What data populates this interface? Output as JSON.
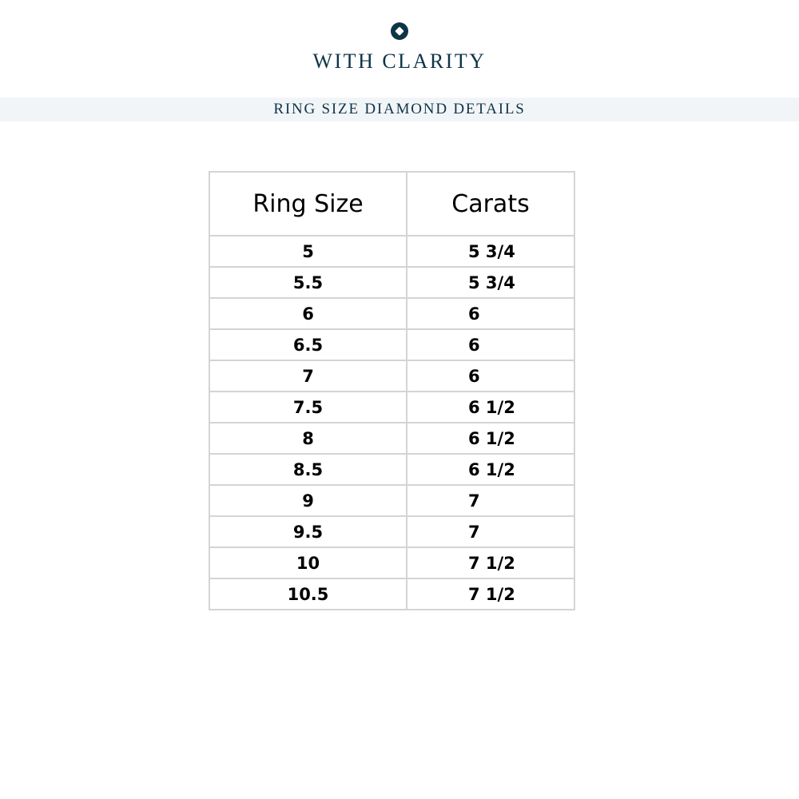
{
  "brand": {
    "name": "WITH CLARITY",
    "logo_icon": "diamond-circle-icon",
    "color": "#0e3447"
  },
  "banner": {
    "title": "RING SIZE DIAMOND DETAILS",
    "background": "#f2f5f8"
  },
  "table": {
    "headers": [
      "Ring Size",
      "Carats"
    ],
    "rows": [
      [
        "5",
        "5 3/4"
      ],
      [
        "5.5",
        "5 3/4"
      ],
      [
        "6",
        "6"
      ],
      [
        "6.5",
        "6"
      ],
      [
        "7",
        "6"
      ],
      [
        "7.5",
        "6 1/2"
      ],
      [
        "8",
        "6 1/2"
      ],
      [
        "8.5",
        "6 1/2"
      ],
      [
        "9",
        "7"
      ],
      [
        "9.5",
        "7"
      ],
      [
        "10",
        "7 1/2"
      ],
      [
        "10.5",
        "7 1/2"
      ]
    ]
  }
}
